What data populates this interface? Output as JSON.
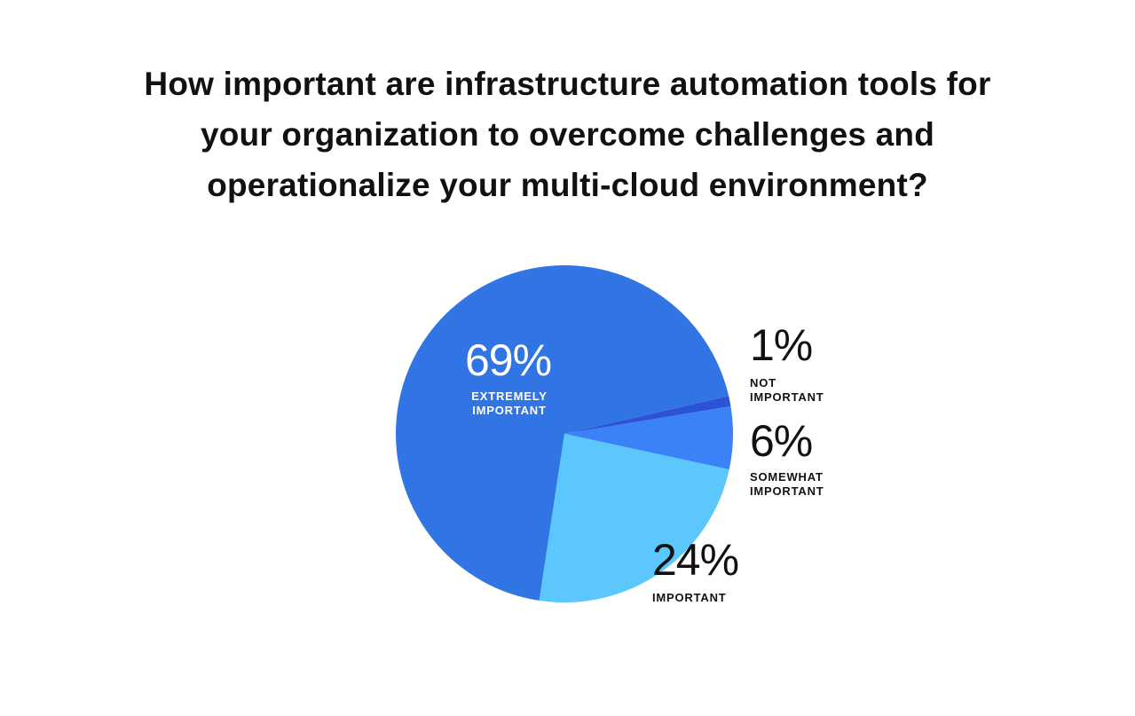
{
  "title_lines": [
    "How important are infrastructure automation tools for",
    "your organization to overcome challenges and",
    "operationalize your multi-cloud environment?"
  ],
  "chart_data": {
    "type": "pie",
    "title": "How important are infrastructure automation tools for your organization to overcome challenges and operationalize your multi-cloud environment?",
    "slices": [
      {
        "label": "NOT IMPORTANT",
        "label_lines": [
          "NOT",
          "IMPORTANT"
        ],
        "pct_text": "1%",
        "value": 1,
        "color": "#2c52d6"
      },
      {
        "label": "SOMEWHAT IMPORTANT",
        "label_lines": [
          "SOMEWHAT",
          "IMPORTANT"
        ],
        "pct_text": "6%",
        "value": 6,
        "color": "#3b82f6"
      },
      {
        "label": "IMPORTANT",
        "label_lines": [
          "IMPORTANT"
        ],
        "pct_text": "24%",
        "value": 24,
        "color": "#5bc7fd"
      },
      {
        "label": "EXTREMELY IMPORTANT",
        "label_lines": [
          "EXTREMELY",
          "IMPORTANT"
        ],
        "pct_text": "69%",
        "value": 69,
        "color": "#3075e3"
      }
    ]
  }
}
